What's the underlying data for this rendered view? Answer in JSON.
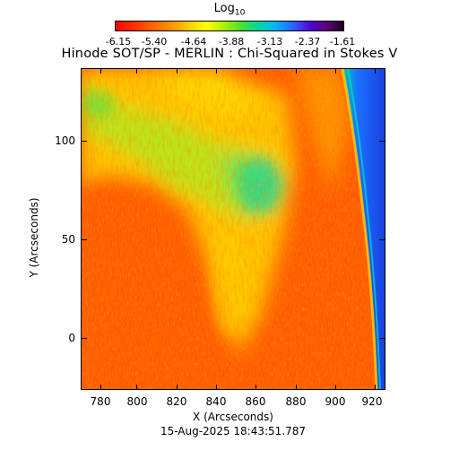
{
  "colorbar": {
    "title_main": "Log",
    "title_sub": "10",
    "ticks": [
      "-6.15",
      "-5.40",
      "-4.64",
      "-3.88",
      "-3.13",
      "-2.37",
      "-1.61"
    ]
  },
  "plot": {
    "title": "Hinode SOT/SP - MERLIN : Chi-Squared in Stokes V",
    "xlabel": "X (Arcseconds)",
    "ylabel": "Y (Arcseconds)",
    "x_ticks": [
      "780",
      "800",
      "820",
      "840",
      "860",
      "880",
      "900",
      "920"
    ],
    "y_ticks": [
      "100",
      "50",
      "0"
    ],
    "xlim": [
      768,
      924
    ],
    "ylim": [
      -26,
      136
    ],
    "timestamp": "15-Aug-2025 18:43:51.787"
  },
  "colors": {
    "background_map": "#ff5000",
    "limb_region": "#1a60ff"
  }
}
